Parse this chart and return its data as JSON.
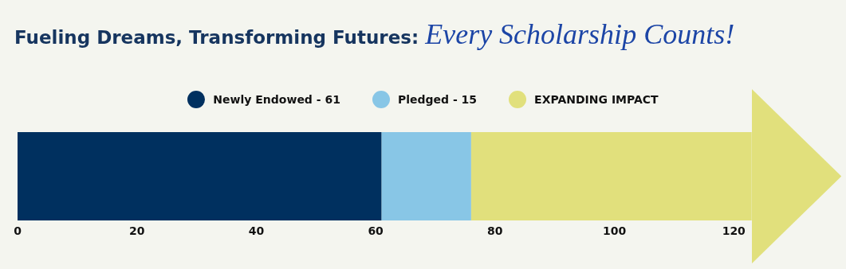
{
  "chart_data": {
    "type": "bar",
    "orientation": "horizontal",
    "stacked": true,
    "title": "Fueling Dreams, Transforming Futures:",
    "subtitle": "Every Scholarship Counts!",
    "categories": [
      null
    ],
    "series": [
      {
        "name": "Newly Endowed - 61",
        "color": "#00305f",
        "values": [
          61
        ]
      },
      {
        "name": "Pledged - 15",
        "color": "#88c6e6",
        "values": [
          15
        ]
      },
      {
        "name": "EXPANDING IMPACT",
        "color": "#e1e07c",
        "values": [
          47
        ]
      }
    ],
    "xlim": [
      0,
      138
    ],
    "xticks": [
      0,
      20,
      40,
      60,
      80,
      100,
      120
    ],
    "legend": "top",
    "grid": false
  }
}
